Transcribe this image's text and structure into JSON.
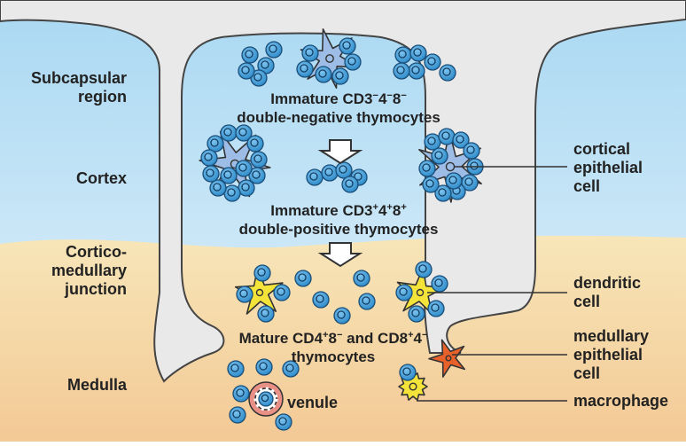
{
  "regions": {
    "subcapsular": [
      "Subcapsular",
      "region"
    ],
    "cortex": [
      "Cortex"
    ],
    "corticomedullary": [
      "Cortico-",
      "medullary",
      "junction"
    ],
    "medulla": [
      "Medulla"
    ]
  },
  "stages": {
    "double_negative": {
      "line1_prefix": "Immature CD3",
      "line1_parts": [
        {
          "text": "−",
          "sup": true
        },
        {
          "text": "4",
          "sup": false
        },
        {
          "text": "−",
          "sup": true
        },
        {
          "text": "8",
          "sup": false
        },
        {
          "text": "−",
          "sup": true
        }
      ],
      "line2": "double-negative thymocytes"
    },
    "double_positive": {
      "line1_prefix": "Immature CD3",
      "line1_parts": [
        {
          "text": "+",
          "sup": true
        },
        {
          "text": "4",
          "sup": false
        },
        {
          "text": "+",
          "sup": true
        },
        {
          "text": "8",
          "sup": false
        },
        {
          "text": "+",
          "sup": true
        }
      ],
      "line2": "double-positive thymocytes"
    },
    "mature": {
      "line1_a": "Mature CD4",
      "line1_a_sup": "+",
      "line1_b": "8",
      "line1_b_sup": "−",
      "line1_c": "  and  CD8",
      "line1_c_sup": "+",
      "line1_d": "4",
      "line1_d_sup": "−",
      "line2": "thymocytes"
    }
  },
  "callouts": {
    "cortical_epithelial": [
      "cortical",
      "epithelial",
      "cell"
    ],
    "dendritic": [
      "dendritic",
      "cell"
    ],
    "medullary_epithelial": [
      "medullary",
      "epithelial",
      "cell"
    ],
    "macrophage": [
      "macrophage"
    ],
    "venule": [
      "venule"
    ]
  },
  "colors": {
    "sky_top": "#a9d8f2",
    "sky_bottom": "#e6f3fb",
    "sand_top": "#f7e6b9",
    "sand_bottom": "#f3c995",
    "septum": "#e9e9e9",
    "thymocyte": "#2a88c8",
    "cortical_cell": "#9dbde6",
    "dendritic": "#f4e43a",
    "medullary_epithelial": "#e8612b",
    "macrophage": "#f4e43a",
    "venule_ring": "#e88f86"
  }
}
